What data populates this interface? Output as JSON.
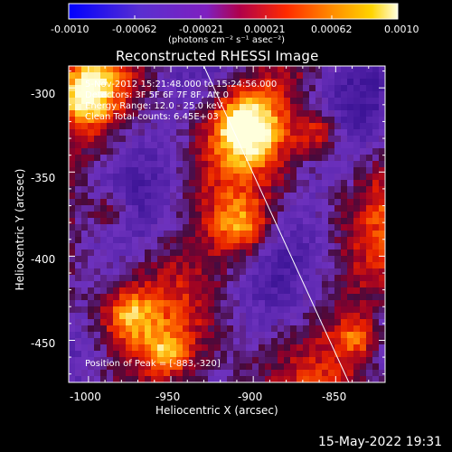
{
  "colorbar": {
    "tick_labels": [
      "-0.0010",
      "-0.00062",
      "-0.00021",
      "0.00021",
      "0.00062",
      "0.0010"
    ],
    "unit_label": "(photons cm⁻² s⁻¹ asec⁻²)",
    "range": [
      -0.001,
      0.001
    ]
  },
  "plot": {
    "title": "Reconstructed RHESSI Image",
    "info_lines": [
      "5-Nov-2012 15:21:48.000 to 15:24:56.000",
      "Detectors: 3F 5F 6F 7F 8F, Att 0",
      "Energy Range: 12.0 - 25.0 keV",
      "Clean    Total counts: 6.45E+03"
    ],
    "peak_text": "Position of Peak = [-883,-320]",
    "xlabel": "Heliocentric X (arcsec)",
    "ylabel": "Heliocentric Y (arcsec)",
    "x_ticks": [
      "-1000",
      "-950",
      "-900",
      "-850"
    ],
    "y_ticks": [
      "-300",
      "-350",
      "-400",
      "-450"
    ]
  },
  "chart_data": {
    "type": "heatmap",
    "title": "Reconstructed RHESSI Image",
    "xlabel": "Heliocentric X (arcsec)",
    "ylabel": "Heliocentric Y (arcsec)",
    "xlim": [
      -1012,
      -820
    ],
    "ylim": [
      -475,
      -287
    ],
    "x_ticks": [
      -1000,
      -950,
      -900,
      -850
    ],
    "y_ticks": [
      -300,
      -350,
      -400,
      -450
    ],
    "colormap": "blue-purple-red-yellow-white",
    "peak": [
      -883,
      -320
    ],
    "limb_line": [
      [
        -930,
        -287
      ],
      [
        -842,
        -475
      ]
    ]
  },
  "footer": {
    "timestamp": "15-May-2022 19:31"
  }
}
